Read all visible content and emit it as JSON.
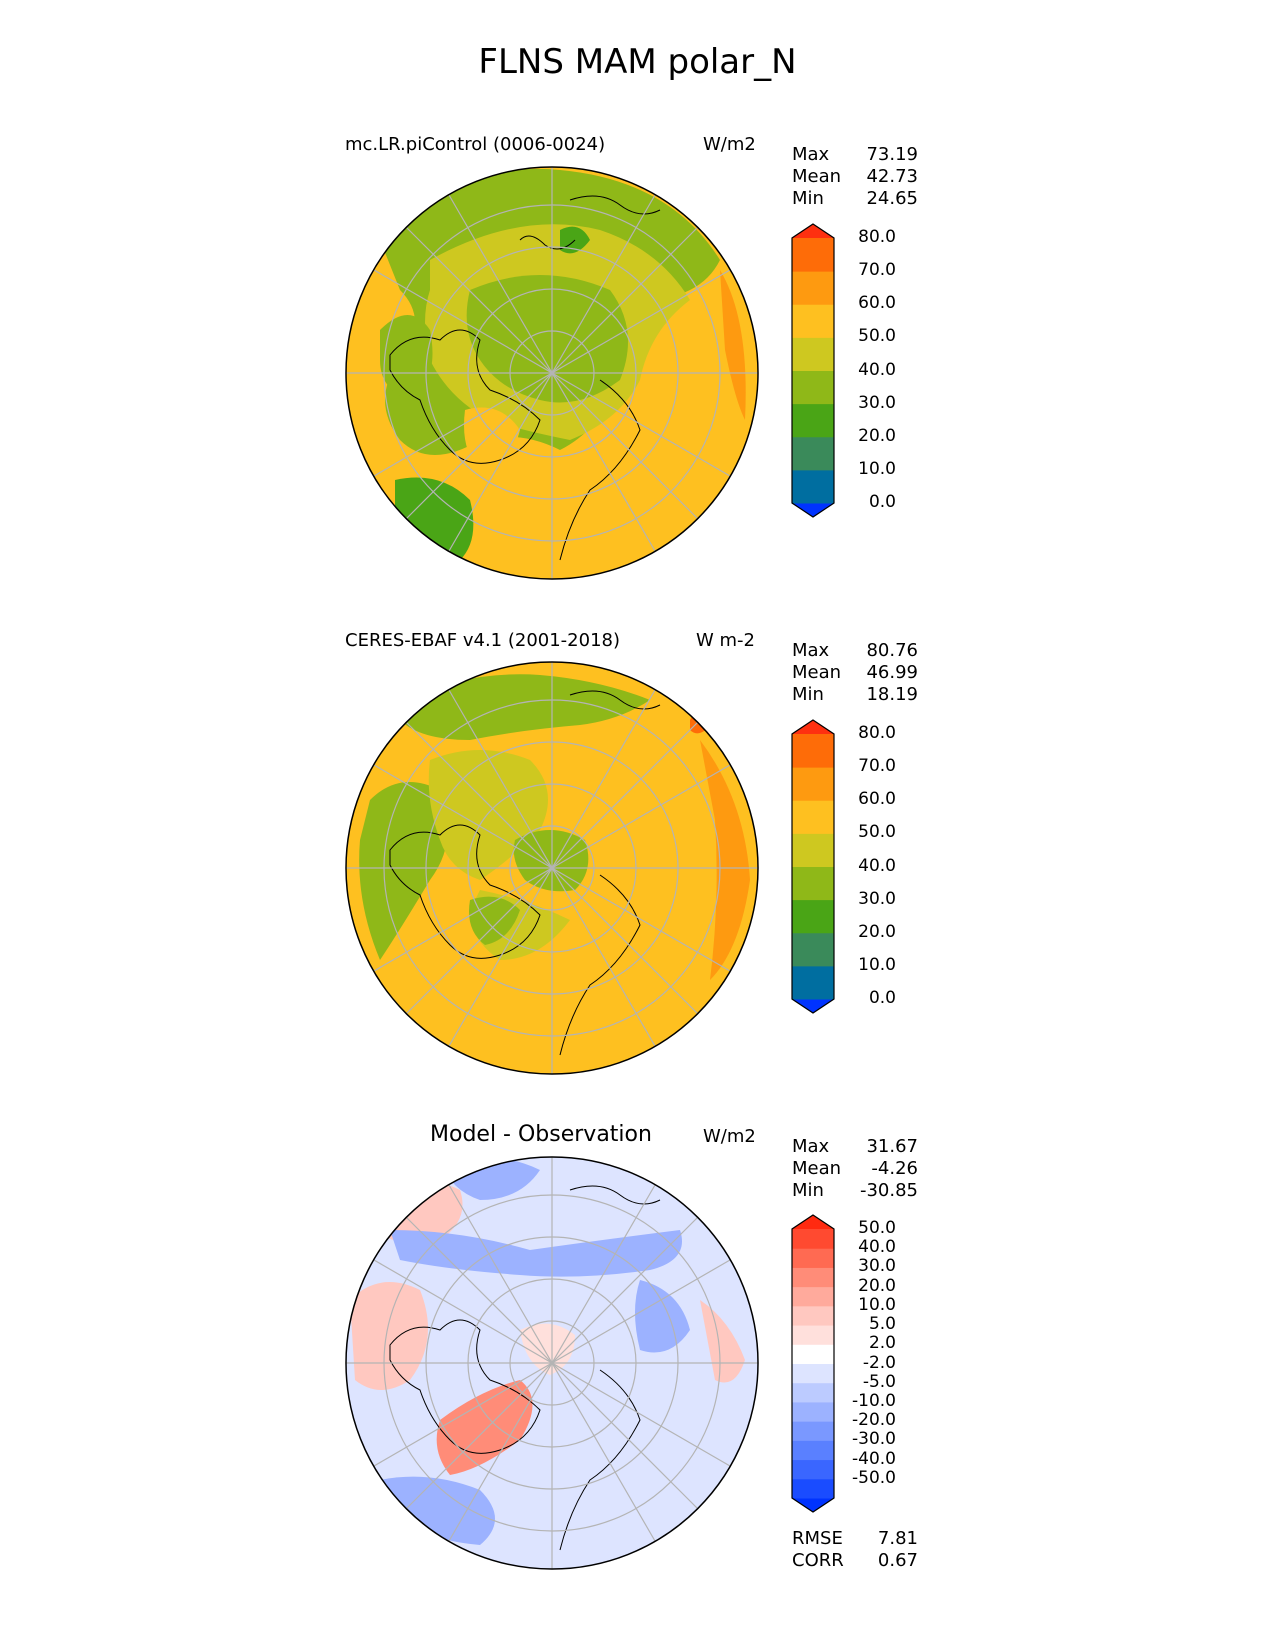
{
  "title": "FLNS MAM polar_N",
  "panels": [
    {
      "id": "model",
      "name": "mc.LR.piControl (0006-0024)",
      "units": "W/m2",
      "stats": [
        {
          "label": "Max",
          "value": "73.19"
        },
        {
          "label": "Mean",
          "value": "42.73"
        },
        {
          "label": "Min",
          "value": "24.65"
        }
      ],
      "colorbar": {
        "labels": [
          "80.0",
          "70.0",
          "60.0",
          "50.0",
          "40.0",
          "30.0",
          "20.0",
          "10.0",
          "0.0"
        ],
        "colors": [
          "#0033ff",
          "#006ea0",
          "#3a8a5a",
          "#4aa516",
          "#8fb818",
          "#cec820",
          "#fec020",
          "#fe9a10",
          "#fe6c08",
          "#fe3010"
        ]
      }
    },
    {
      "id": "obs",
      "name": "CERES-EBAF v4.1 (2001-2018)",
      "units": "W m-2",
      "stats": [
        {
          "label": "Max",
          "value": "80.76"
        },
        {
          "label": "Mean",
          "value": "46.99"
        },
        {
          "label": "Min",
          "value": "18.19"
        }
      ],
      "colorbar": {
        "labels": [
          "80.0",
          "70.0",
          "60.0",
          "50.0",
          "40.0",
          "30.0",
          "20.0",
          "10.0",
          "0.0"
        ],
        "colors": [
          "#0033ff",
          "#006ea0",
          "#3a8a5a",
          "#4aa516",
          "#8fb818",
          "#cec820",
          "#fec020",
          "#fe9a10",
          "#fe6c08",
          "#fe3010"
        ]
      }
    },
    {
      "id": "diff",
      "name": "Model - Observation",
      "units": "W/m2",
      "stats": [
        {
          "label": "Max",
          "value": "31.67"
        },
        {
          "label": "Mean",
          "value": "-4.26"
        },
        {
          "label": "Min",
          "value": "-30.85"
        }
      ],
      "metrics": [
        {
          "label": "RMSE",
          "value": "7.81"
        },
        {
          "label": "CORR",
          "value": "0.67"
        }
      ],
      "colorbar": {
        "labels": [
          "50.0",
          "40.0",
          "30.0",
          "20.0",
          "10.0",
          "5.0",
          "2.0",
          "-2.0",
          "-5.0",
          "-10.0",
          "-20.0",
          "-30.0",
          "-40.0",
          "-50.0"
        ],
        "colors": [
          "#0033ff",
          "#1a4cff",
          "#3a66ff",
          "#5a80ff",
          "#7a98ff",
          "#9cb2ff",
          "#bccbff",
          "#dde4ff",
          "#ffffff",
          "#ffe0dc",
          "#ffc8c0",
          "#ffaa9c",
          "#ff8c78",
          "#ff6a52",
          "#ff4a30",
          "#ff2a10"
        ]
      }
    }
  ]
}
